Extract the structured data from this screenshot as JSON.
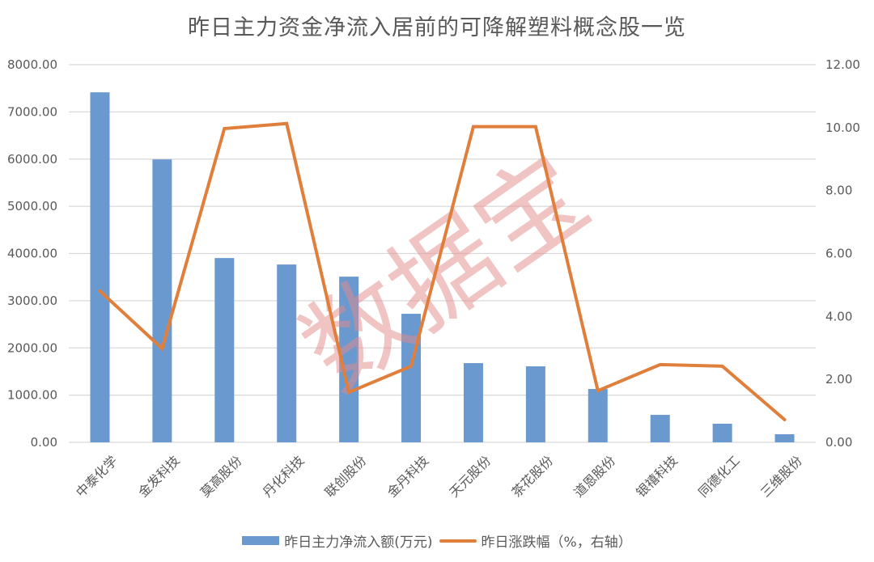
{
  "chart_data": {
    "type": "bar+line",
    "title": "昨日主力资金净流入居前的可降解塑料概念股一览",
    "categories": [
      "中泰化学",
      "金发科技",
      "莫高股份",
      "丹化科技",
      "联创股份",
      "金丹科技",
      "天元股份",
      "茶花股份",
      "道恩股份",
      "银禧科技",
      "同德化工",
      "三维股份"
    ],
    "series": [
      {
        "name": "昨日主力净流入额(万元)",
        "type": "bar",
        "axis": "left",
        "color": "#6a99d0",
        "values": [
          7415,
          5993,
          3904,
          3767,
          3510,
          2723,
          1678,
          1610,
          1130,
          582,
          394,
          171
        ]
      },
      {
        "name": "昨日涨跌幅（%，右轴）",
        "type": "line",
        "axis": "right",
        "color": "#e07f3c",
        "values": [
          4.81,
          2.98,
          9.97,
          10.13,
          1.59,
          2.42,
          10.03,
          10.03,
          1.64,
          2.47,
          2.42,
          0.72
        ]
      }
    ],
    "left_axis": {
      "ylim": [
        0,
        8000
      ],
      "ticks": [
        "0.00",
        "1000.00",
        "2000.00",
        "3000.00",
        "4000.00",
        "5000.00",
        "6000.00",
        "7000.00",
        "8000.00"
      ]
    },
    "right_axis": {
      "ylim": [
        0,
        12
      ],
      "ticks": [
        "0.00",
        "2.00",
        "4.00",
        "6.00",
        "8.00",
        "10.00",
        "12.00"
      ]
    },
    "xlabel": "",
    "ylabel": "",
    "grid": true,
    "legend_position": "bottom",
    "watermark": "数据宝"
  }
}
